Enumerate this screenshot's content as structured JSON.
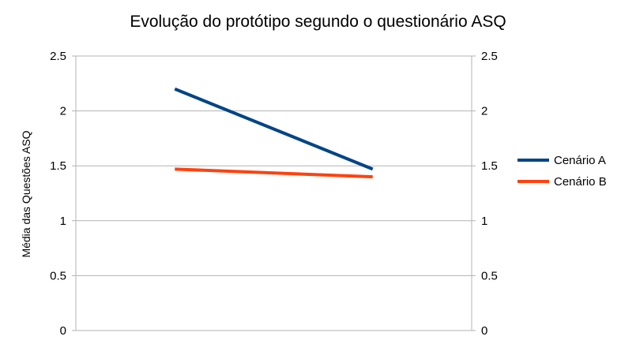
{
  "chart_data": {
    "type": "line",
    "title": "Evolução do protótipo segundo o questionário ASQ",
    "ylabel": "Média das Questões ASQ",
    "xlabel": "",
    "x": [
      1,
      2
    ],
    "ylim": [
      0,
      2.5
    ],
    "yticks": [
      "0",
      "0.5",
      "1",
      "1.5",
      "2",
      "2.5"
    ],
    "secondary_yticks": [
      "0",
      "0.5",
      "1",
      "1.5",
      "2",
      "2.5"
    ],
    "grid": true,
    "legend_position": "right",
    "series": [
      {
        "name": "Cenário A",
        "values": [
          2.2,
          1.47
        ],
        "color": "#004586"
      },
      {
        "name": "Cenário B",
        "values": [
          1.47,
          1.4
        ],
        "color": "#ff420e"
      }
    ]
  }
}
